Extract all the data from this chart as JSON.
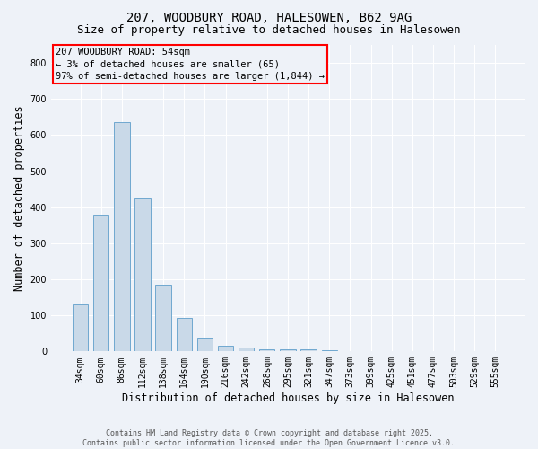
{
  "title": "207, WOODBURY ROAD, HALESOWEN, B62 9AG",
  "subtitle": "Size of property relative to detached houses in Halesowen",
  "xlabel": "Distribution of detached houses by size in Halesowen",
  "ylabel": "Number of detached properties",
  "bar_values": [
    130,
    380,
    635,
    425,
    185,
    93,
    37,
    17,
    10,
    5,
    5,
    7,
    3,
    1,
    1,
    0,
    0,
    0,
    0,
    0,
    0
  ],
  "bar_labels": [
    "34sqm",
    "60sqm",
    "86sqm",
    "112sqm",
    "138sqm",
    "164sqm",
    "190sqm",
    "216sqm",
    "242sqm",
    "268sqm",
    "295sqm",
    "321sqm",
    "347sqm",
    "373sqm",
    "399sqm",
    "425sqm",
    "451sqm",
    "477sqm",
    "503sqm",
    "529sqm",
    "555sqm"
  ],
  "bar_color": "#c9d9e8",
  "bar_edge_color": "#6fa8d0",
  "ylim": [
    0,
    850
  ],
  "yticks": [
    0,
    100,
    200,
    300,
    400,
    500,
    600,
    700,
    800
  ],
  "annotation_title": "207 WOODBURY ROAD: 54sqm",
  "annotation_line2": "← 3% of detached houses are smaller (65)",
  "annotation_line3": "97% of semi-detached houses are larger (1,844) →",
  "annotation_box_color": "#ff0000",
  "footer_line1": "Contains HM Land Registry data © Crown copyright and database right 2025.",
  "footer_line2": "Contains public sector information licensed under the Open Government Licence v3.0.",
  "bg_color": "#eef2f8",
  "plot_bg_color": "#eef2f8",
  "title_fontsize": 10,
  "subtitle_fontsize": 9,
  "axis_label_fontsize": 8.5,
  "tick_fontsize": 7,
  "annotation_fontsize": 7.5,
  "footer_fontsize": 6,
  "bar_width": 0.75
}
